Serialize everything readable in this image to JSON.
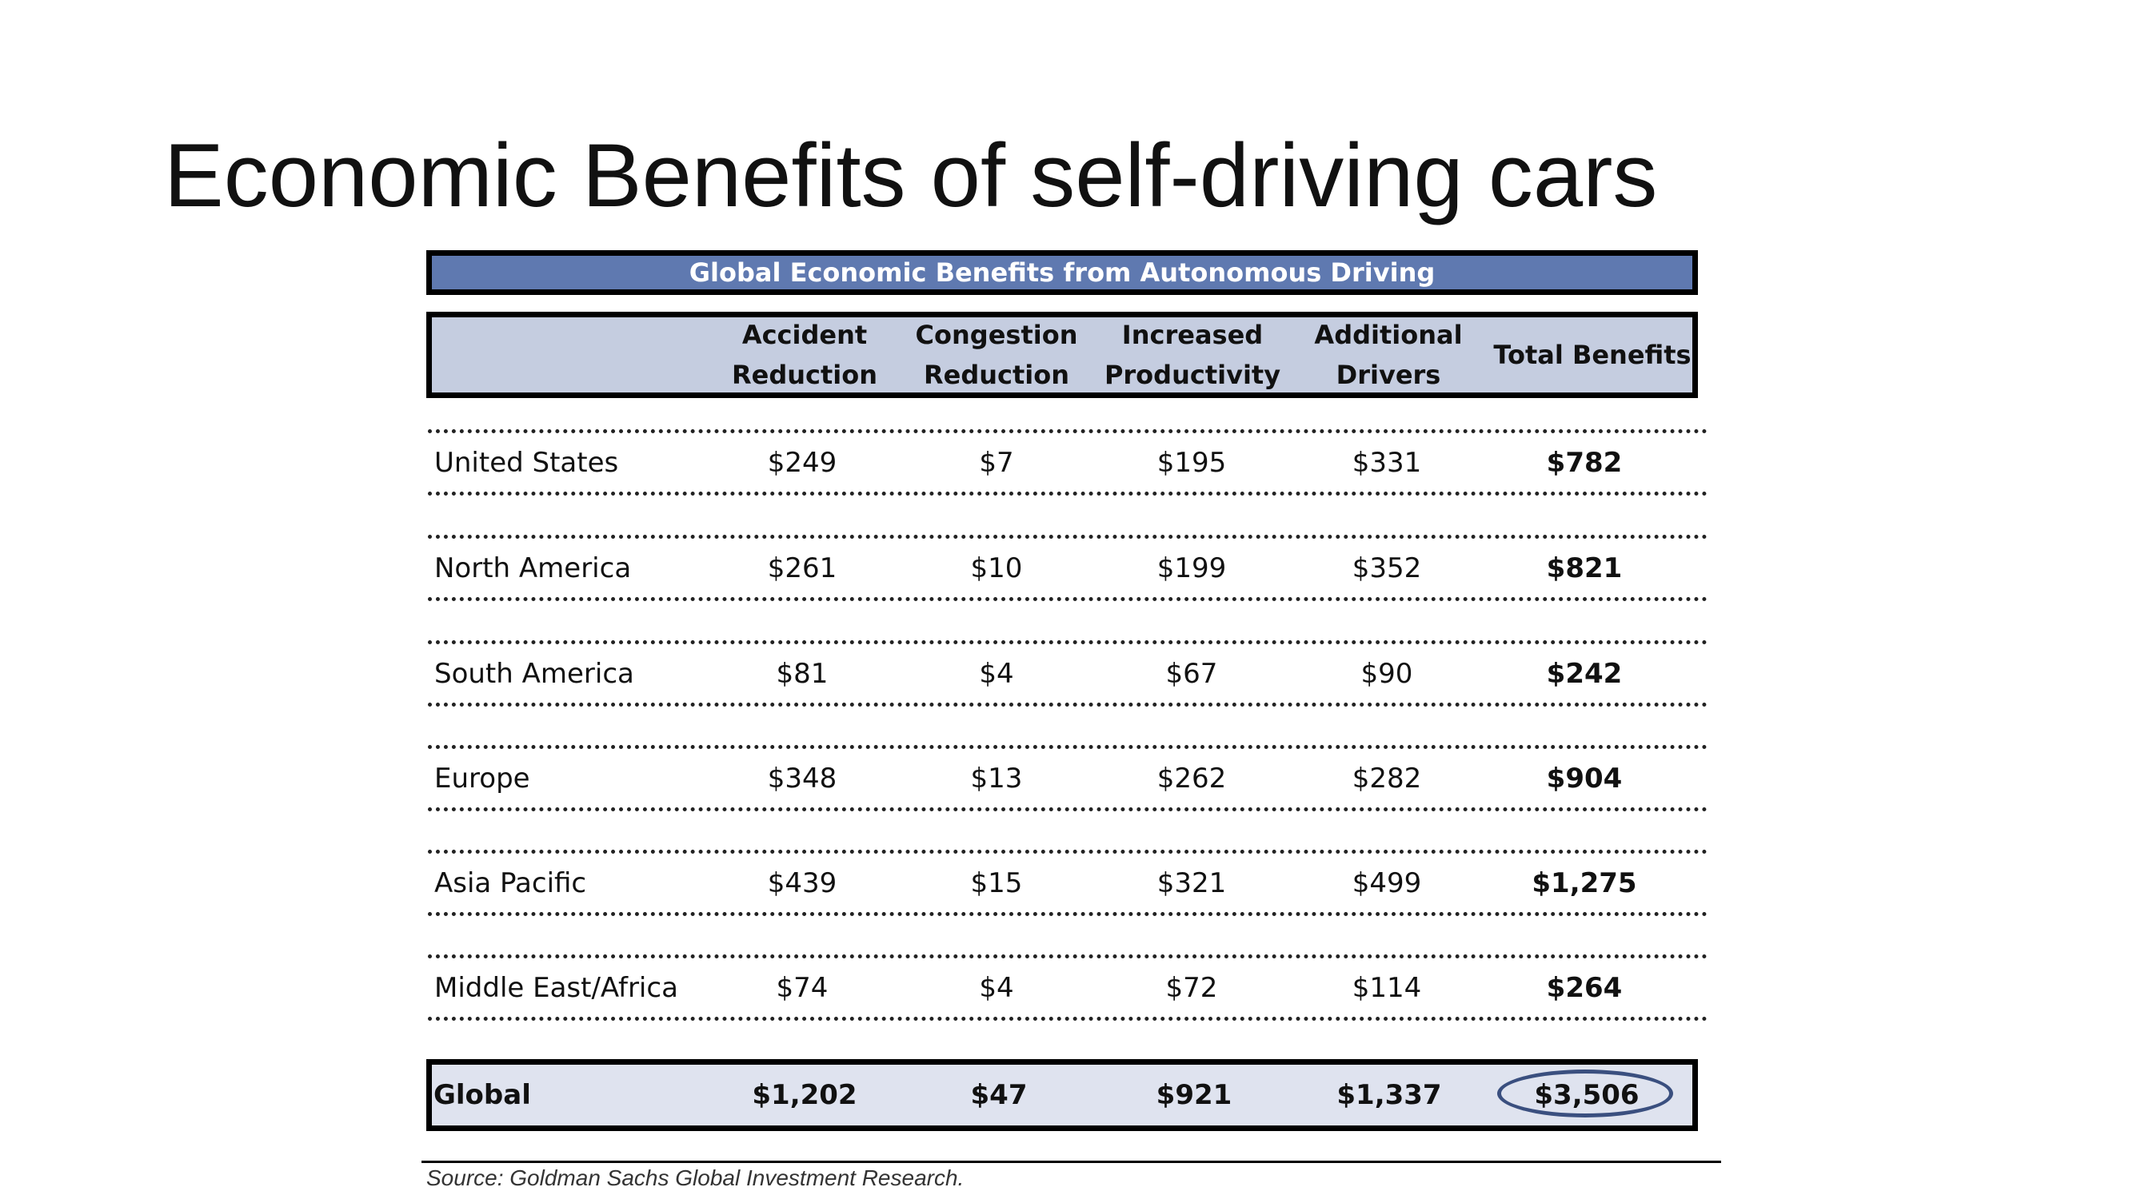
{
  "slide": {
    "title": "Economic Benefits of self-driving cars"
  },
  "table": {
    "title": "Global Economic Benefits from Autonomous Driving",
    "columns": [
      "Accident\nReduction",
      "Congestion\nReduction",
      "Increased\nProductivity",
      "Additional\nDrivers",
      "Total Benefits"
    ],
    "rows": [
      {
        "region": "United States",
        "values": [
          "$249",
          "$7",
          "$195",
          "$331",
          "$782"
        ]
      },
      {
        "region": "North America",
        "values": [
          "$261",
          "$10",
          "$199",
          "$352",
          "$821"
        ]
      },
      {
        "region": "South America",
        "values": [
          "$81",
          "$4",
          "$67",
          "$90",
          "$242"
        ]
      },
      {
        "region": "Europe",
        "values": [
          "$348",
          "$13",
          "$262",
          "$282",
          "$904"
        ]
      },
      {
        "region": "Asia Pacific",
        "values": [
          "$439",
          "$15",
          "$321",
          "$499",
          "$1,275"
        ]
      },
      {
        "region": "Middle East/Africa",
        "values": [
          "$74",
          "$4",
          "$72",
          "$114",
          "$264"
        ]
      }
    ],
    "global": {
      "region": "Global",
      "values": [
        "$1,202",
        "$47",
        "$921",
        "$1,337",
        "$3,506"
      ]
    },
    "source": "Source: Goldman Sachs Global Investment Research."
  },
  "colors": {
    "title_bar": "#5f79b0",
    "header_bg": "#c5cde0",
    "global_bg": "#dfe3ef",
    "highlight_ellipse": "#3a4f7f"
  }
}
